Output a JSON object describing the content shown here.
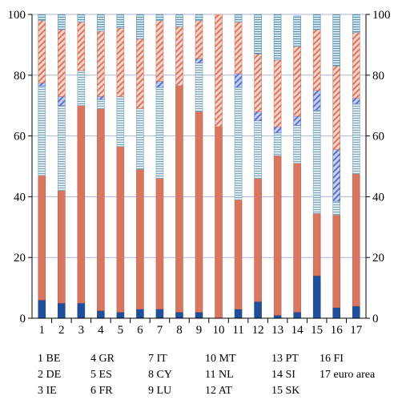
{
  "chart_data": {
    "type": "bar",
    "stacked": true,
    "orientation": "vertical",
    "categories": [
      "1",
      "2",
      "3",
      "4",
      "5",
      "6",
      "7",
      "8",
      "9",
      "10",
      "11",
      "12",
      "13",
      "14",
      "15",
      "16",
      "17"
    ],
    "ylim": [
      0,
      100
    ],
    "yticks": [
      0,
      20,
      40,
      60,
      80,
      100
    ],
    "grid": true,
    "right_axis": true,
    "title": "",
    "xlabel": "",
    "ylabel": "",
    "series": [
      {
        "color": "#1f4e9a",
        "pattern": "solid",
        "values": [
          6,
          5,
          5,
          2.5,
          2,
          3,
          3,
          2,
          2,
          0,
          3,
          5.5,
          1,
          2,
          14,
          3.5,
          4
        ]
      },
      {
        "color": "#d9765f",
        "pattern": "solid",
        "values": [
          41,
          37,
          65,
          66.5,
          54.5,
          46,
          43,
          74.5,
          66,
          63,
          36,
          40.5,
          52.5,
          49,
          20.5,
          30.5,
          43.5
        ]
      },
      {
        "color": "#bfd7de",
        "pattern": "horizontal-lines",
        "values": [
          29.5,
          28,
          11.5,
          3,
          16.5,
          20,
          30,
          0,
          16,
          0,
          37,
          19,
          7.5,
          12.5,
          34,
          4.5,
          23
        ]
      },
      {
        "color": "#8fa3d9",
        "pattern": "diagonal-hatch",
        "values": [
          1,
          3,
          0,
          1,
          0,
          0,
          2,
          0,
          1.5,
          0,
          4.5,
          3,
          2,
          3,
          6.5,
          17,
          2
        ]
      },
      {
        "color": "#f0b9aa",
        "pattern": "diagonal-hatch",
        "values": [
          20.5,
          22,
          16,
          21.5,
          22.5,
          23,
          20,
          19.5,
          12.5,
          37,
          17,
          19,
          22,
          23,
          20,
          27.5,
          21.5
        ]
      },
      {
        "color": "#a8cfe0",
        "pattern": "horizontal-lines",
        "values": [
          2,
          5,
          2.5,
          5.5,
          4.5,
          8,
          2,
          4,
          2,
          0,
          2.5,
          13,
          15,
          10,
          5,
          17,
          6
        ]
      }
    ]
  },
  "legend": {
    "columns": [
      [
        "1 BE",
        "2 DE",
        "3 IE"
      ],
      [
        "4 GR",
        "5 ES",
        "6 FR"
      ],
      [
        "7 IT",
        "8 CY",
        "9 LU"
      ],
      [
        "10 MT",
        "11 NL",
        "12 AT"
      ],
      [
        "13 PT",
        "14 SI",
        "15 SK"
      ],
      [
        "16 FI",
        "17 euro area"
      ]
    ]
  }
}
